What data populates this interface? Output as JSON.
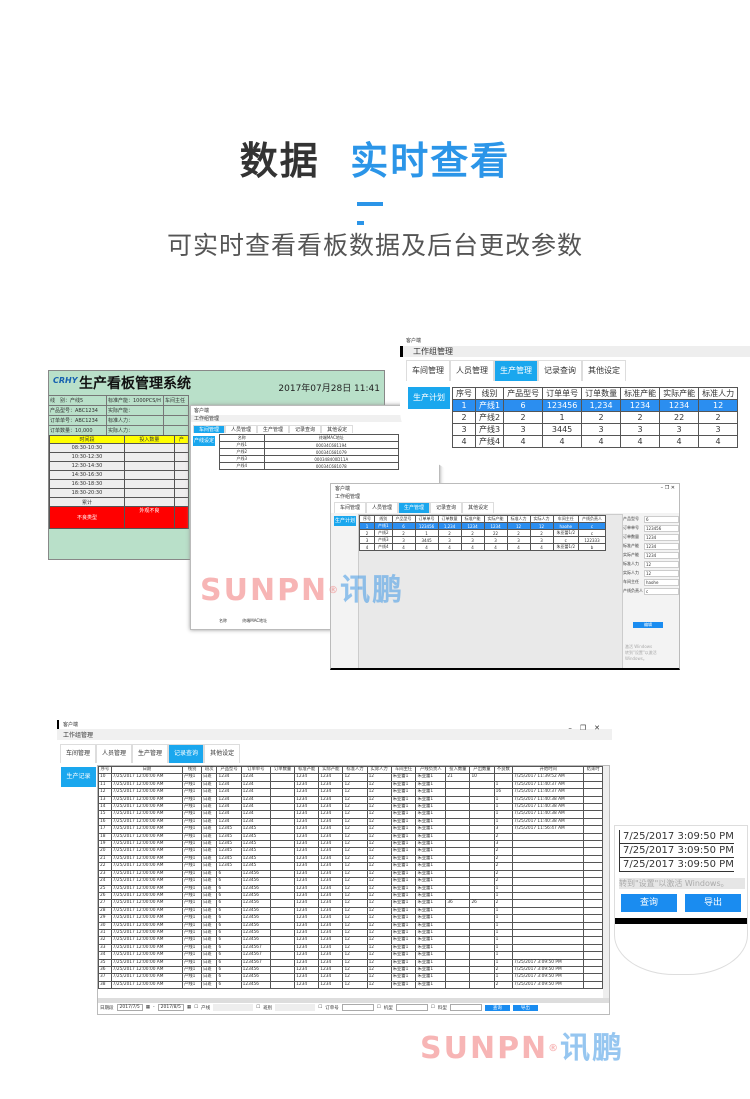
{
  "heading": {
    "part1": "数据",
    "part2": "实时查看",
    "subtitle": "可实时查看看板数据及后台更改参数",
    "accent": "#2b95e8"
  },
  "board": {
    "logo": "CRHY",
    "title": "生产看板管理系统",
    "datetime": "2017年07月28日 11:41",
    "fields": [
      [
        "线　别：产线5",
        "标准产能：1000PCS/H",
        "车间主任"
      ],
      [
        "产品型号：ABC1234",
        "实际产能：",
        ""
      ],
      [
        "订单单号：ABC1234",
        "标准人力：",
        ""
      ],
      [
        "订单数量：10,000",
        "实际人力：",
        ""
      ]
    ],
    "col_headers": [
      "时间段",
      "投入数量",
      "产"
    ],
    "slots": [
      "08:30-10:30",
      "10:30-12:30",
      "12:30-14:30",
      "14:30-16:30",
      "16:30-18:30",
      "18:30-20:30",
      "累计"
    ],
    "defect_label": "不良类型",
    "defect_col": "外观不良"
  },
  "client": {
    "app": "客户端",
    "title": "工作组管理",
    "tabs": [
      "车间管理",
      "人员管理",
      "生产管理",
      "记录查询",
      "其他设定"
    ],
    "minimize": "–",
    "restore": "❐",
    "close": "✕"
  },
  "mid_window": {
    "side": "产线设定",
    "headers": [
      "名称",
      "终端MAC地址"
    ],
    "rows": [
      [
        "产线1",
        "00034C681194"
      ],
      [
        "产线2",
        "00034C681079"
      ],
      [
        "产线3",
        "000348400D11A"
      ],
      [
        "产线4",
        "00034C681078"
      ]
    ],
    "footer": [
      "名称",
      "终端MAC地址"
    ]
  },
  "plan_window": {
    "side": "生产计划",
    "headers": [
      "序号",
      "线别",
      "产品型号",
      "订单单号",
      "订单数量",
      "标准产能",
      "实际产能",
      "标准人力",
      "实际人力",
      "车间主任",
      "产线负责人"
    ],
    "rows": [
      [
        "1",
        "产线1",
        "6",
        "123456",
        "1,234",
        "1234",
        "1234",
        "12",
        "12",
        "haohe",
        "c"
      ],
      [
        "2",
        "产线2",
        "2",
        "1",
        "2",
        "2",
        "22",
        "2",
        "2",
        "朱亚蕾1/2",
        "c"
      ],
      [
        "3",
        "产线3",
        "3",
        "3445",
        "3",
        "3",
        "3",
        "3",
        "3",
        "c",
        "122333"
      ],
      [
        "4",
        "产线4",
        "4",
        "4",
        "4",
        "4",
        "4",
        "4",
        "4",
        "朱亚蕾1/2",
        "b"
      ]
    ],
    "form": [
      [
        "产品型号",
        "6"
      ],
      [
        "订单单号",
        "123456"
      ],
      [
        "订单数量",
        "1234"
      ],
      [
        "标准产能",
        "1234"
      ],
      [
        "实际产能",
        "1234"
      ],
      [
        "标准人力",
        "12"
      ],
      [
        "实际人力",
        "12"
      ],
      [
        "车间主任",
        "haohe"
      ],
      [
        "产线负责人",
        "c"
      ]
    ],
    "edit": "编辑",
    "activate": "激活 Windows",
    "activate_hint": "转到\"设置\"以激活 Windows。"
  },
  "records": {
    "side": "生产记录",
    "headers": [
      "序号",
      "日期",
      "线别",
      "班次",
      "产品型号",
      "订单单号",
      "订单数量",
      "标准产能",
      "实际产能",
      "标准人力",
      "实际人力",
      "车间主任",
      "产线负责人",
      "投入数量",
      "产出数量",
      "不良数",
      "开始时间",
      "结束时"
    ],
    "rows": [
      [
        "10",
        "7/25/2017 12:00:00 AM",
        "产线1",
        "白班",
        "1234",
        "1234",
        "",
        "1234",
        "1234",
        "12",
        "12",
        "朱亚蕾1",
        "朱亚蕾1",
        "21",
        "10",
        "",
        "7/25/2017 11:39:52 AM",
        ""
      ],
      [
        "11",
        "7/25/2017 12:00:00 AM",
        "产线1",
        "白班",
        "1234",
        "1234",
        "",
        "1234",
        "1234",
        "12",
        "12",
        "朱亚蕾1",
        "朱亚蕾1",
        "",
        "",
        "1",
        "7/25/2017 11:40:37 AM",
        ""
      ],
      [
        "12",
        "7/25/2017 12:00:00 AM",
        "产线1",
        "白班",
        "1234",
        "1234",
        "",
        "1234",
        "1234",
        "12",
        "12",
        "朱亚蕾1",
        "朱亚蕾1",
        "",
        "",
        "16",
        "7/25/2017 11:40:37 AM",
        ""
      ],
      [
        "13",
        "7/25/2017 12:00:00 AM",
        "产线1",
        "白班",
        "1234",
        "1234",
        "",
        "1234",
        "1234",
        "12",
        "12",
        "朱亚蕾1",
        "朱亚蕾1",
        "",
        "",
        "1",
        "7/25/2017 11:40:38 AM",
        ""
      ],
      [
        "14",
        "7/25/2017 12:00:00 AM",
        "产线1",
        "白班",
        "1234",
        "1234",
        "",
        "1234",
        "1234",
        "12",
        "12",
        "朱亚蕾1",
        "朱亚蕾1",
        "",
        "",
        "1",
        "7/25/2017 11:40:38 AM",
        ""
      ],
      [
        "15",
        "7/25/2017 12:00:00 AM",
        "产线1",
        "白班",
        "1234",
        "1234",
        "",
        "1234",
        "1234",
        "12",
        "12",
        "朱亚蕾1",
        "朱亚蕾1",
        "",
        "",
        "1",
        "7/25/2017 11:40:38 AM",
        ""
      ],
      [
        "16",
        "7/25/2017 12:00:00 AM",
        "产线1",
        "白班",
        "1234",
        "1234",
        "",
        "1234",
        "1234",
        "12",
        "12",
        "朱亚蕾1",
        "朱亚蕾1",
        "",
        "",
        "1",
        "7/25/2017 11:40:38 AM",
        ""
      ],
      [
        "17",
        "7/25/2017 12:00:00 AM",
        "产线1",
        "白班",
        "12345",
        "12345",
        "",
        "1234",
        "1234",
        "12",
        "12",
        "朱亚蕾1",
        "朱亚蕾1",
        "",
        "",
        "3",
        "7/25/2017 11:56:47 AM",
        ""
      ],
      [
        "18",
        "7/25/2017 12:00:00 AM",
        "产线1",
        "白班",
        "12345",
        "12345",
        "",
        "1234",
        "1234",
        "12",
        "12",
        "朱亚蕾1",
        "朱亚蕾1",
        "",
        "",
        "2",
        "",
        ""
      ],
      [
        "19",
        "7/25/2017 12:00:00 AM",
        "产线1",
        "白班",
        "12345",
        "12345",
        "",
        "1234",
        "1234",
        "12",
        "12",
        "朱亚蕾1",
        "朱亚蕾1",
        "",
        "",
        "3",
        "",
        ""
      ],
      [
        "20",
        "7/25/2017 12:00:00 AM",
        "产线1",
        "白班",
        "12345",
        "12345",
        "",
        "1234",
        "1234",
        "12",
        "12",
        "朱亚蕾1",
        "朱亚蕾1",
        "",
        "",
        "2",
        "",
        ""
      ],
      [
        "21",
        "7/25/2017 12:00:00 AM",
        "产线1",
        "白班",
        "12345",
        "12345",
        "",
        "1234",
        "1234",
        "12",
        "12",
        "朱亚蕾1",
        "朱亚蕾1",
        "",
        "",
        "2",
        "",
        ""
      ],
      [
        "22",
        "7/25/2017 12:00:00 AM",
        "产线1",
        "白班",
        "12345",
        "12345",
        "",
        "1234",
        "1234",
        "12",
        "12",
        "朱亚蕾1",
        "朱亚蕾1",
        "",
        "",
        "2",
        "",
        ""
      ],
      [
        "23",
        "7/25/2017 12:00:00 AM",
        "产线1",
        "白班",
        "6",
        "123456",
        "",
        "1234",
        "1234",
        "12",
        "12",
        "朱亚蕾1",
        "朱亚蕾1",
        "",
        "",
        "2",
        "",
        ""
      ],
      [
        "24",
        "7/25/2017 12:00:00 AM",
        "产线1",
        "白班",
        "6",
        "123456",
        "",
        "1234",
        "1234",
        "12",
        "12",
        "朱亚蕾1",
        "朱亚蕾1",
        "",
        "",
        "2",
        "",
        ""
      ],
      [
        "25",
        "7/25/2017 12:00:00 AM",
        "产线1",
        "白班",
        "6",
        "123456",
        "",
        "1234",
        "1234",
        "12",
        "12",
        "朱亚蕾1",
        "朱亚蕾1",
        "",
        "",
        "1",
        "",
        ""
      ],
      [
        "26",
        "7/25/2017 12:00:00 AM",
        "产线1",
        "白班",
        "6",
        "123456",
        "",
        "1234",
        "1234",
        "12",
        "12",
        "朱亚蕾1",
        "朱亚蕾1",
        "",
        "",
        "1",
        "",
        ""
      ],
      [
        "27",
        "7/25/2017 12:00:00 AM",
        "产线1",
        "白班",
        "6",
        "123456",
        "",
        "1234",
        "1234",
        "12",
        "12",
        "朱亚蕾1",
        "朱亚蕾1",
        "36",
        "26",
        "2",
        "",
        ""
      ],
      [
        "28",
        "7/25/2017 12:00:00 AM",
        "产线1",
        "白班",
        "6",
        "123456",
        "",
        "1234",
        "1234",
        "12",
        "12",
        "朱亚蕾1",
        "朱亚蕾1",
        "",
        "",
        "1",
        "",
        ""
      ],
      [
        "29",
        "7/25/2017 12:00:00 AM",
        "产线1",
        "白班",
        "6",
        "123456",
        "",
        "1234",
        "1234",
        "12",
        "12",
        "朱亚蕾1",
        "朱亚蕾1",
        "",
        "",
        "1",
        "",
        ""
      ],
      [
        "30",
        "7/25/2017 12:00:00 AM",
        "产线1",
        "白班",
        "6",
        "123456",
        "",
        "1234",
        "1234",
        "12",
        "12",
        "朱亚蕾1",
        "朱亚蕾1",
        "",
        "",
        "1",
        "",
        ""
      ],
      [
        "31",
        "7/25/2017 12:00:00 AM",
        "产线1",
        "白班",
        "6",
        "123456",
        "",
        "1234",
        "1234",
        "12",
        "12",
        "朱亚蕾1",
        "朱亚蕾1",
        "",
        "",
        "1",
        "",
        ""
      ],
      [
        "32",
        "7/25/2017 12:00:00 AM",
        "产线1",
        "白班",
        "6",
        "123456",
        "",
        "1234",
        "1234",
        "12",
        "12",
        "朱亚蕾1",
        "朱亚蕾1",
        "",
        "",
        "1",
        "",
        ""
      ],
      [
        "33",
        "7/25/2017 12:00:00 AM",
        "产线1",
        "白班",
        "6",
        "1234567",
        "",
        "1234",
        "1234",
        "12",
        "12",
        "朱亚蕾1",
        "朱亚蕾1",
        "",
        "",
        "1",
        "",
        ""
      ],
      [
        "34",
        "7/25/2017 12:00:00 AM",
        "产线1",
        "白班",
        "6",
        "1234567",
        "",
        "1234",
        "1234",
        "12",
        "12",
        "朱亚蕾1",
        "朱亚蕾1",
        "",
        "",
        "1",
        "",
        ""
      ],
      [
        "35",
        "7/25/2017 12:00:00 AM",
        "产线1",
        "白班",
        "6",
        "1234567",
        "",
        "1234",
        "1234",
        "12",
        "12",
        "朱亚蕾1",
        "朱亚蕾1",
        "",
        "",
        "1",
        "7/25/2017 3:09:50 PM",
        ""
      ],
      [
        "36",
        "7/25/2017 12:00:00 AM",
        "产线1",
        "白班",
        "6",
        "123456",
        "",
        "1234",
        "1234",
        "12",
        "12",
        "朱亚蕾1",
        "朱亚蕾1",
        "",
        "",
        "2",
        "7/25/2017 3:09:50 PM",
        ""
      ],
      [
        "37",
        "7/25/2017 12:00:00 AM",
        "产线1",
        "白班",
        "6",
        "123456",
        "",
        "1234",
        "1234",
        "12",
        "12",
        "朱亚蕾1",
        "朱亚蕾1",
        "",
        "",
        "1",
        "7/25/2017 3:09:50 PM",
        ""
      ],
      [
        "38",
        "7/25/2017 12:00:00 AM",
        "产线1",
        "白班",
        "6",
        "123456",
        "",
        "1234",
        "1234",
        "12",
        "12",
        "朱亚蕾1",
        "朱亚蕾1",
        "",
        "",
        "2",
        "7/25/2017 3:09:50 PM",
        ""
      ]
    ],
    "filter": {
      "date_label": "日期段",
      "date_from": "2017/7/5",
      "date_to": "2017/8/5",
      "line": "产线",
      "shift": "班别",
      "order": "订单号",
      "model": "机型",
      "part": "料型",
      "query": "查询",
      "export": "导出"
    }
  },
  "zoom_callout": {
    "times": [
      "7/25/2017 3:09:50 PM",
      "7/25/2017 3:09:50 PM",
      "7/25/2017 3:09:50 PM"
    ],
    "activate_hint": "转到\"设置\"以激活 Windows。",
    "query": "查询",
    "export": "导出"
  },
  "watermark": {
    "latin": "SUNPN",
    "brand": "讯鹏",
    "reg": "®"
  }
}
